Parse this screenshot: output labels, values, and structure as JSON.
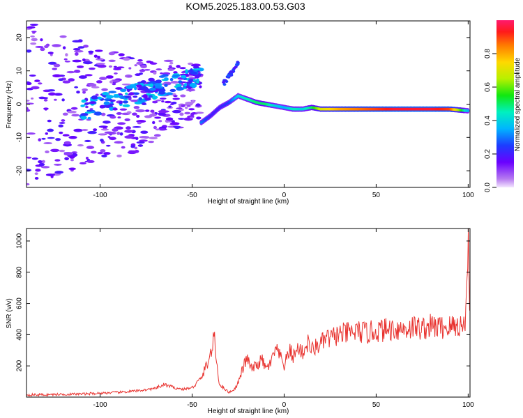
{
  "title": "KOM5.2025.183.00.53.G03",
  "chart_data": [
    {
      "type": "heatmap",
      "xlabel": "Height of straight line (km)",
      "ylabel": "Frequency (Hz)",
      "xlim": [
        -140,
        101
      ],
      "ylim": [
        -25,
        25
      ],
      "xticks": [
        "-100",
        "-50",
        "0",
        "50",
        "100"
      ],
      "yticks": [
        "20",
        "10",
        "0",
        "-10",
        "-20"
      ],
      "colorbar": {
        "label": "Normalized spectral amplitude",
        "ticks": [
          "0.0",
          "0.2",
          "0.4",
          "0.6",
          "0.8"
        ],
        "range": [
          0,
          1
        ]
      },
      "ridge": {
        "x": [
          -45,
          -40,
          -35,
          -30,
          -25,
          -20,
          -15,
          -10,
          -5,
          0,
          5,
          10,
          15,
          20,
          30,
          40,
          50,
          60,
          70,
          80,
          90,
          100
        ],
        "freq": [
          -5.5,
          -3.5,
          -1,
          0.5,
          2.5,
          1.5,
          0.5,
          0,
          -0.5,
          -1,
          -1.5,
          -1.5,
          -1,
          -1.5,
          -1.5,
          -1.5,
          -1.5,
          -1.5,
          -1.5,
          -1.5,
          -1.5,
          -2
        ],
        "amplitude": [
          0.3,
          0.2,
          0.2,
          0.25,
          0.4,
          0.45,
          0.5,
          0.5,
          0.4,
          0.35,
          0.45,
          0.4,
          0.5,
          0.7,
          0.8,
          0.85,
          0.9,
          0.95,
          0.95,
          0.95,
          0.9,
          0.35
        ]
      }
    },
    {
      "type": "line",
      "series": [
        {
          "x": [
            -140,
            -130,
            -120,
            -110,
            -100,
            -90,
            -80,
            -70,
            -65,
            -60,
            -55,
            -50,
            -45,
            -40,
            -38,
            -36,
            -35,
            -33,
            -30,
            -27,
            -25,
            -22,
            -20,
            -18,
            -15,
            -12,
            -10,
            -7,
            -5,
            -3,
            0,
            3,
            5,
            8,
            10,
            13,
            15,
            18,
            20,
            23,
            25,
            28,
            30,
            35,
            40,
            45,
            50,
            55,
            60,
            65,
            70,
            75,
            80,
            85,
            90,
            95,
            98,
            99,
            100,
            100.5,
            101
          ],
          "y": [
            15,
            15,
            18,
            20,
            25,
            30,
            40,
            55,
            80,
            60,
            50,
            60,
            120,
            270,
            380,
            150,
            80,
            60,
            30,
            50,
            90,
            200,
            250,
            180,
            200,
            240,
            180,
            220,
            300,
            280,
            200,
            300,
            260,
            320,
            280,
            350,
            300,
            330,
            340,
            380,
            370,
            395,
            400,
            410,
            420,
            410,
            425,
            430,
            440,
            435,
            450,
            440,
            455,
            445,
            450,
            460,
            455,
            620,
            1000,
            820,
            480
          ]
        }
      ],
      "xlabel": "Height of straight line (km)",
      "ylabel": "SNR (v/v)",
      "xlim": [
        -140,
        101
      ],
      "ylim": [
        0,
        1080
      ],
      "xticks": [
        "-100",
        "-50",
        "0",
        "50",
        "100"
      ],
      "yticks": [
        "1000",
        "800",
        "600",
        "400",
        "200"
      ],
      "color": "#e8322e"
    }
  ]
}
